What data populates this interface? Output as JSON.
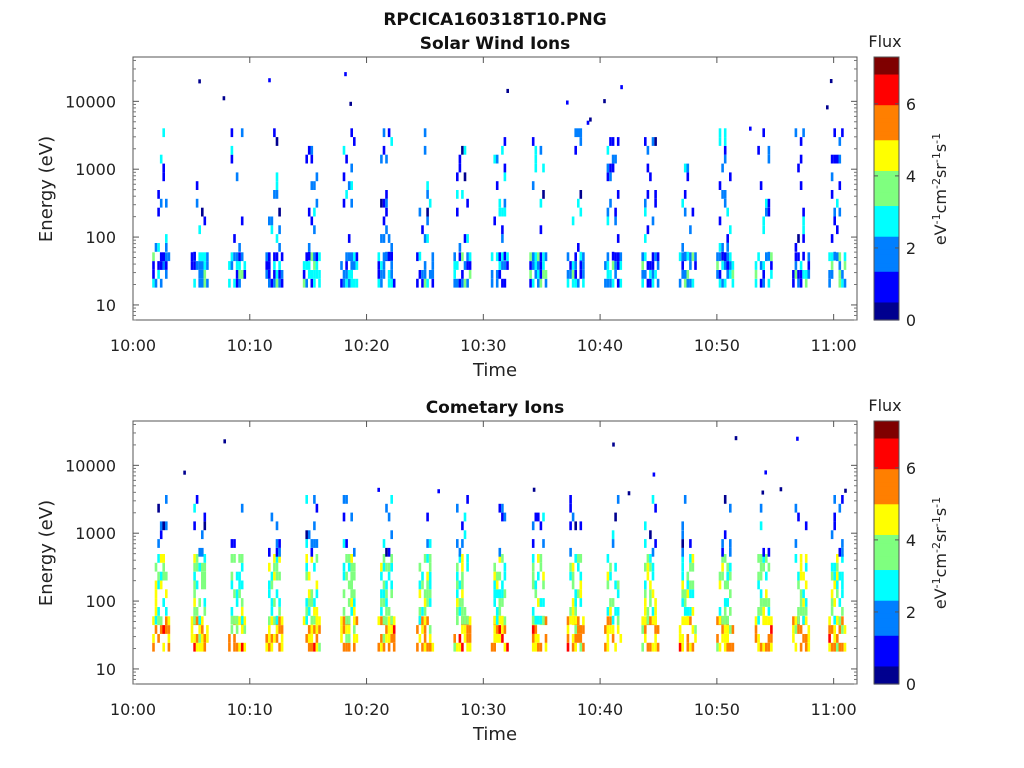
{
  "figure": {
    "title": "RPCICA160318T10.PNG"
  },
  "colormap": [
    "#00008f",
    "#0000ff",
    "#007fff",
    "#00ffff",
    "#7fff7f",
    "#ffff00",
    "#ff7f00",
    "#ff0000",
    "#7f0000"
  ],
  "chart_data": [
    {
      "type": "heatmap",
      "title": "Solar Wind Ions",
      "xlabel": "Time",
      "ylabel": "Energy (eV)",
      "xlim": [
        "10:00",
        "11:02"
      ],
      "ylim": [
        6,
        45000
      ],
      "yscale": "log",
      "xticks": [
        "10:00",
        "10:10",
        "10:20",
        "10:30",
        "10:40",
        "10:50",
        "11:00"
      ],
      "yticks": [
        "10",
        "100",
        "1000",
        "10000"
      ],
      "colorbar": {
        "label": "Flux",
        "unit": "eV-1cm-2sr-1s-1",
        "range": [
          0,
          7.3
        ],
        "ticks": [
          "0",
          "2",
          "4",
          "6"
        ]
      },
      "burst_times_min": [
        2.3,
        5.6,
        8.8,
        12.0,
        15.2,
        18.4,
        21.6,
        24.9,
        28.1,
        31.3,
        34.6,
        37.8,
        41.0,
        44.2,
        47.4,
        50.6,
        53.9,
        57.1,
        60.2
      ],
      "main_band_eV": [
        18,
        45
      ],
      "main_band_flux": [
        0.5,
        3.5
      ],
      "upper_scatter_eV": [
        45,
        3500
      ],
      "upper_scatter_flux": [
        0.3,
        2.8
      ],
      "grid": false
    },
    {
      "type": "heatmap",
      "title": "Cometary Ions",
      "xlabel": "Time",
      "ylabel": "Energy (eV)",
      "xlim": [
        "10:00",
        "11:02"
      ],
      "ylim": [
        6,
        45000
      ],
      "yscale": "log",
      "xticks": [
        "10:00",
        "10:10",
        "10:20",
        "10:30",
        "10:40",
        "10:50",
        "11:00"
      ],
      "yticks": [
        "10",
        "100",
        "1000",
        "10000"
      ],
      "colorbar": {
        "label": "Flux",
        "unit": "eV-1cm-2sr-1s-1",
        "range": [
          0,
          7.3
        ],
        "ticks": [
          "0",
          "2",
          "4",
          "6"
        ]
      },
      "burst_times_min": [
        2.3,
        5.6,
        8.8,
        12.0,
        15.2,
        18.4,
        21.6,
        24.9,
        28.1,
        31.3,
        34.6,
        37.8,
        41.0,
        44.2,
        47.4,
        50.6,
        53.9,
        57.1,
        60.2
      ],
      "main_band_eV": [
        18,
        45
      ],
      "main_band_flux": [
        4.0,
        6.0
      ],
      "mid_band_eV": [
        45,
        450
      ],
      "mid_band_flux": [
        2.5,
        4.5
      ],
      "upper_scatter_eV": [
        450,
        3500
      ],
      "upper_scatter_flux": [
        0.3,
        2.5
      ],
      "grid": false
    }
  ]
}
